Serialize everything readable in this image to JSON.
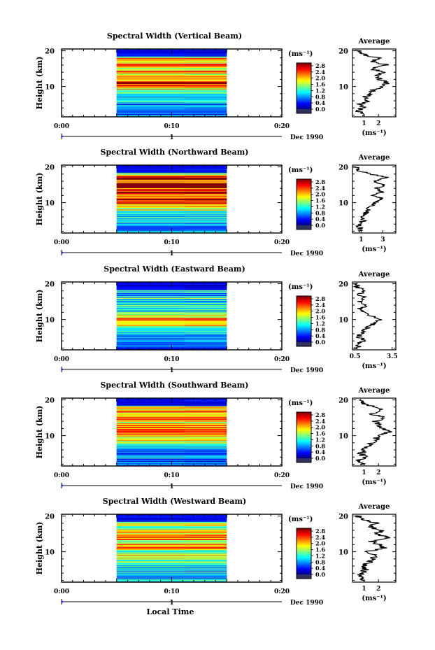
{
  "figure": {
    "x_axis_label": "Local Time",
    "date_label": "Dec 1990",
    "x_tick_labels": [
      "0:00",
      "0:10",
      "0:20"
    ],
    "day_label": "1",
    "y_axis_label": "Height (km)",
    "y_tick_labels": [
      "20",
      "10"
    ],
    "colorbar_unit": "(ms⁻¹)",
    "colorbar_tick_labels": [
      "2.8",
      "2.4",
      "2.0",
      "1.6",
      "1.2",
      "0.8",
      "0.4",
      "0.0"
    ],
    "average_title": "Average",
    "average_unit": "(ms⁻¹)"
  },
  "chart_data": [
    {
      "type": "heatmap",
      "title": "Spectral Width (Vertical Beam)",
      "xlabel": "Local Time",
      "ylabel": "Height (km)",
      "xlim_min": [
        0,
        20
      ],
      "ylim_km": [
        1.5,
        20.5
      ],
      "data_time_range_min": [
        5,
        15
      ],
      "colorbar_range": [
        0.0,
        3.0
      ],
      "profile_seed": 11,
      "average_profile": {
        "title": "Average",
        "xlabel": "(ms⁻¹)",
        "x_tick_labels": [
          "1",
          "2"
        ],
        "xlim": [
          0.2,
          3.2
        ],
        "heights_km": [
          2,
          3,
          4,
          5,
          6,
          7,
          8,
          9,
          10,
          11,
          12,
          13,
          14,
          15,
          16,
          17,
          18,
          19,
          20
        ],
        "values": [
          1.0,
          0.6,
          0.9,
          0.7,
          1.2,
          1.0,
          1.5,
          1.6,
          2.2,
          2.6,
          2.1,
          1.9,
          2.3,
          1.5,
          2.6,
          1.6,
          2.0,
          0.9,
          0.6
        ]
      }
    },
    {
      "type": "heatmap",
      "title": "Spectral Width (Northward Beam)",
      "xlabel": "Local Time",
      "ylabel": "Height (km)",
      "xlim_min": [
        0,
        20
      ],
      "ylim_km": [
        1.5,
        20.5
      ],
      "data_time_range_min": [
        5,
        15
      ],
      "colorbar_range": [
        0.0,
        3.0
      ],
      "profile_seed": 23,
      "average_profile": {
        "title": "Average",
        "xlabel": "(ms⁻¹)",
        "x_tick_labels": [
          "1",
          "3"
        ],
        "xlim": [
          0.2,
          4.2
        ],
        "heights_km": [
          2,
          3,
          4,
          5,
          6,
          7,
          8,
          9,
          10,
          11,
          12,
          13,
          14,
          15,
          16,
          17,
          18,
          19,
          20
        ],
        "values": [
          1.0,
          0.9,
          0.7,
          1.3,
          1.1,
          1.4,
          1.6,
          2.0,
          2.4,
          3.0,
          2.2,
          2.9,
          2.4,
          3.1,
          2.2,
          3.4,
          1.8,
          0.8,
          0.5
        ]
      }
    },
    {
      "type": "heatmap",
      "title": "Spectral Width (Eastward Beam)",
      "xlabel": "Local Time",
      "ylabel": "Height (km)",
      "xlim_min": [
        0,
        20
      ],
      "ylim_km": [
        1.5,
        20.5
      ],
      "data_time_range_min": [
        5,
        15
      ],
      "colorbar_range": [
        0.0,
        3.0
      ],
      "profile_seed": 37,
      "average_profile": {
        "title": "Average",
        "xlabel": "(ms⁻¹)",
        "x_tick_labels": [
          "0.5",
          "3.5"
        ],
        "xlim": [
          0.3,
          3.8
        ],
        "heights_km": [
          2,
          3,
          4,
          5,
          6,
          7,
          8,
          9,
          10,
          11,
          12,
          13,
          14,
          15,
          16,
          17,
          18,
          19,
          20
        ],
        "values": [
          0.8,
          0.6,
          1.2,
          0.9,
          1.0,
          1.3,
          1.6,
          2.1,
          2.6,
          1.9,
          1.1,
          0.8,
          1.5,
          0.9,
          1.4,
          0.8,
          1.3,
          0.7,
          0.5
        ]
      }
    },
    {
      "type": "heatmap",
      "title": "Spectral Width (Southward Beam)",
      "xlabel": "Local Time",
      "ylabel": "Height (km)",
      "xlim_min": [
        0,
        20
      ],
      "ylim_km": [
        1.5,
        20.5
      ],
      "data_time_range_min": [
        5,
        15
      ],
      "colorbar_range": [
        0.0,
        3.0
      ],
      "profile_seed": 53,
      "average_profile": {
        "title": "Average",
        "xlabel": "(ms⁻¹)",
        "x_tick_labels": [
          "1",
          "2"
        ],
        "xlim": [
          0.2,
          3.2
        ],
        "heights_km": [
          2,
          3,
          4,
          5,
          6,
          7,
          8,
          9,
          10,
          11,
          12,
          13,
          14,
          15,
          16,
          17,
          18,
          19,
          20
        ],
        "values": [
          0.9,
          0.6,
          1.0,
          0.8,
          1.1,
          1.2,
          1.5,
          1.8,
          2.0,
          2.7,
          2.4,
          2.0,
          1.8,
          2.5,
          1.6,
          2.3,
          1.7,
          0.9,
          0.6
        ]
      }
    },
    {
      "type": "heatmap",
      "title": "Spectral Width (Westward Beam)",
      "xlabel": "Local Time",
      "ylabel": "Height (km)",
      "xlim_min": [
        0,
        20
      ],
      "ylim_km": [
        1.5,
        20.5
      ],
      "data_time_range_min": [
        5,
        15
      ],
      "colorbar_range": [
        0.0,
        3.0
      ],
      "profile_seed": 71,
      "average_profile": {
        "title": "Average",
        "xlabel": "(ms⁻¹)",
        "x_tick_labels": [
          "1",
          "2"
        ],
        "xlim": [
          0.2,
          3.2
        ],
        "heights_km": [
          2,
          3,
          4,
          5,
          6,
          7,
          8,
          9,
          10,
          11,
          12,
          13,
          14,
          15,
          16,
          17,
          18,
          19,
          20
        ],
        "values": [
          1.0,
          0.7,
          0.9,
          1.1,
          1.0,
          1.3,
          1.6,
          1.9,
          1.2,
          2.4,
          2.0,
          1.5,
          2.6,
          1.8,
          2.2,
          1.3,
          1.9,
          0.9,
          0.6
        ]
      }
    }
  ]
}
